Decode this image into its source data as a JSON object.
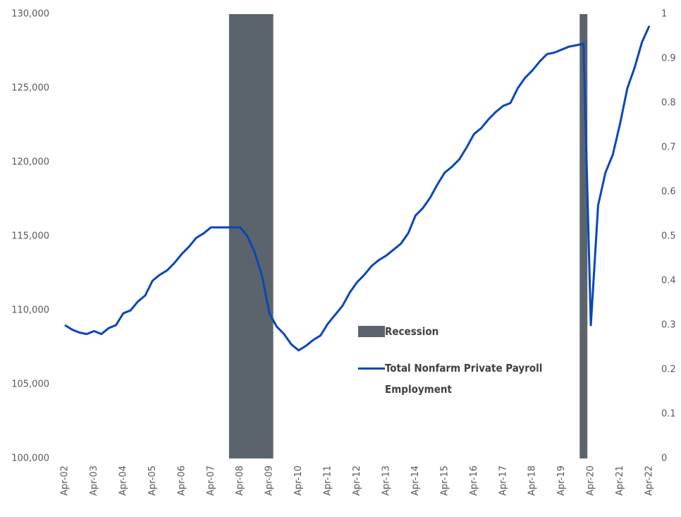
{
  "chart_data": {
    "type": "line",
    "categories": [
      "Apr-02",
      null,
      null,
      null,
      "Apr-03",
      null,
      null,
      null,
      "Apr-04",
      null,
      null,
      null,
      "Apr-05",
      null,
      null,
      null,
      "Apr-06",
      null,
      null,
      null,
      "Apr-07",
      null,
      null,
      null,
      "Apr-08",
      null,
      null,
      null,
      "Apr-09",
      null,
      null,
      null,
      "Apr-10",
      null,
      null,
      null,
      "Apr-11",
      null,
      null,
      null,
      "Apr-12",
      null,
      null,
      null,
      "Apr-13",
      null,
      null,
      null,
      "Apr-14",
      null,
      null,
      null,
      "Apr-15",
      null,
      null,
      null,
      "Apr-16",
      null,
      null,
      null,
      "Apr-17",
      null,
      null,
      null,
      "Apr-18",
      null,
      null,
      null,
      "Apr-19",
      null,
      null,
      null,
      "Apr-20",
      null,
      null,
      null,
      "Apr-21",
      null,
      null,
      null,
      "Apr-22"
    ],
    "series": [
      {
        "name": "Recession",
        "type": "bar",
        "axis": "y2",
        "color": "#5b646c",
        "values": [
          null,
          null,
          null,
          null,
          null,
          null,
          null,
          null,
          null,
          null,
          null,
          null,
          null,
          null,
          null,
          null,
          null,
          null,
          null,
          null,
          null,
          null,
          null,
          1,
          1,
          1,
          1,
          1,
          1,
          null,
          null,
          null,
          null,
          null,
          null,
          null,
          null,
          null,
          null,
          null,
          null,
          null,
          null,
          null,
          null,
          null,
          null,
          null,
          null,
          null,
          null,
          null,
          null,
          null,
          null,
          null,
          null,
          null,
          null,
          null,
          null,
          null,
          null,
          null,
          null,
          null,
          null,
          null,
          null,
          null,
          null,
          1,
          null,
          null,
          null,
          null,
          null,
          null,
          null,
          null,
          null
        ]
      },
      {
        "name": "Total Nonfarm Private Payroll Employment",
        "type": "line",
        "color": "#0a47b8",
        "values": [
          109000,
          108700,
          108500,
          108400,
          108600,
          108400,
          108800,
          109000,
          109800,
          110000,
          110600,
          111000,
          112000,
          112400,
          112700,
          113200,
          113800,
          114300,
          114900,
          115200,
          115600,
          115600,
          115600,
          115600,
          115600,
          115000,
          113900,
          112300,
          109800,
          108900,
          108400,
          107700,
          107300,
          107600,
          108000,
          108300,
          109100,
          109700,
          110300,
          111200,
          111900,
          112400,
          113000,
          113400,
          113700,
          114100,
          114500,
          115200,
          116400,
          116900,
          117600,
          118500,
          119300,
          119700,
          120200,
          121000,
          121900,
          122300,
          122900,
          123400,
          123800,
          124000,
          125000,
          125700,
          126200,
          126800,
          127300,
          127400,
          127600,
          127800,
          127900,
          128000,
          109000,
          117100,
          119300,
          120500,
          122600,
          125000,
          126400,
          128100,
          129200
        ]
      }
    ],
    "ylim": [
      100000,
      130000
    ],
    "yticks": [
      {
        "value": 100000,
        "label": "100,000"
      },
      {
        "value": 105000,
        "label": "105,000"
      },
      {
        "value": 110000,
        "label": "110,000"
      },
      {
        "value": 115000,
        "label": "115,000"
      },
      {
        "value": 120000,
        "label": "120,000"
      },
      {
        "value": 125000,
        "label": "125,000"
      },
      {
        "value": 130000,
        "label": "130,000"
      }
    ],
    "y2lim": [
      0,
      1
    ],
    "y2ticks": [
      0,
      0.1,
      0.2,
      0.3,
      0.4,
      0.5,
      0.6,
      0.7,
      0.8,
      0.9,
      1
    ],
    "grid": false
  }
}
